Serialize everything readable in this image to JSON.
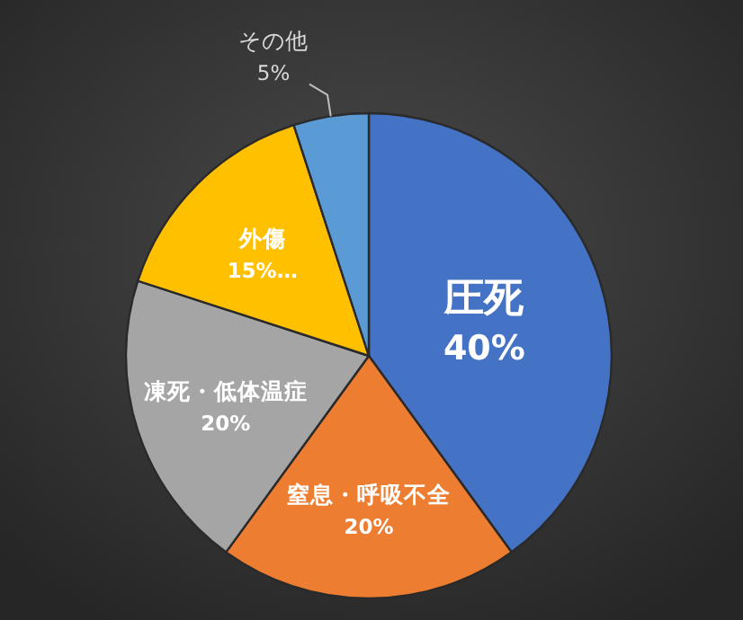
{
  "chart_data": {
    "type": "pie",
    "categories": [
      "圧死",
      "窒息・呼吸不全",
      "凍死・低体温症",
      "外傷",
      "その他"
    ],
    "values": [
      40,
      20,
      20,
      15,
      5
    ],
    "colors": [
      "#4472c4",
      "#ed7d31",
      "#a5a5a5",
      "#ffc000",
      "#5b9bd5"
    ],
    "value_labels": [
      "40%",
      "20%",
      "20%",
      "15%…",
      "5%"
    ]
  }
}
